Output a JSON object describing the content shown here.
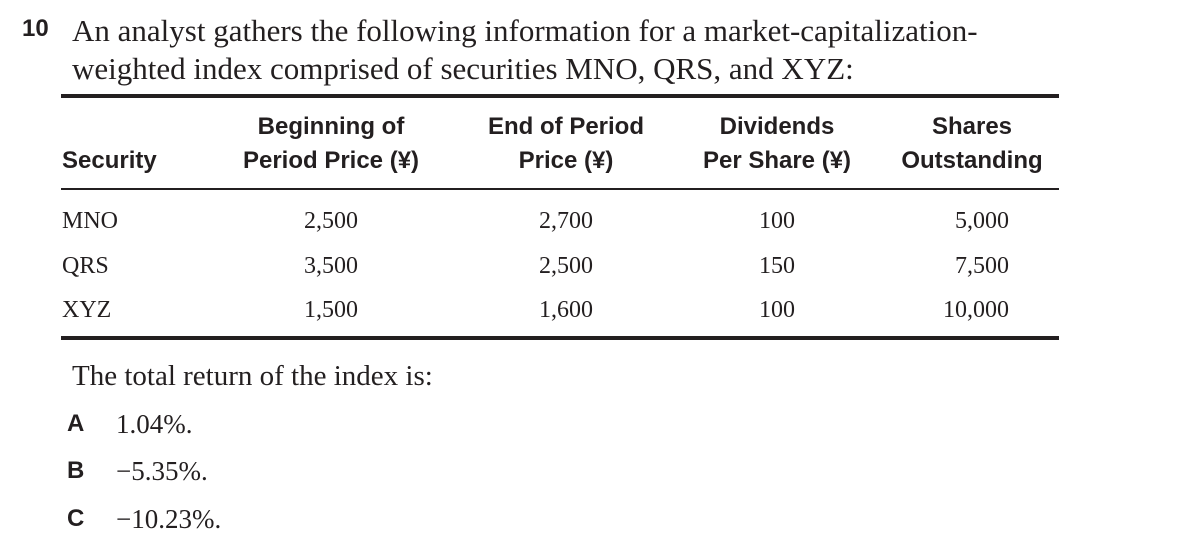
{
  "question": {
    "number": "10",
    "stem_line1": "An analyst gathers the following information for a market-capitalization-",
    "stem_line2": "weighted index comprised of securities MNO, QRS, and XYZ:"
  },
  "table": {
    "headers": [
      {
        "line1": "",
        "line2": "Security"
      },
      {
        "line1": "Beginning of",
        "line2": "Period Price (¥)"
      },
      {
        "line1": "End of Period",
        "line2": "Price (¥)"
      },
      {
        "line1": "Dividends",
        "line2": "Per Share (¥)"
      },
      {
        "line1": "Shares",
        "line2": "Outstanding"
      }
    ],
    "rows": [
      [
        "MNO",
        "2,500",
        "2,700",
        "100",
        "5,000"
      ],
      [
        "QRS",
        "3,500",
        "2,500",
        "150",
        "7,500"
      ],
      [
        "XYZ",
        "1,500",
        "1,600",
        "100",
        "10,000"
      ]
    ]
  },
  "prompt": "The total return of the index is:",
  "choices": [
    {
      "letter": "A",
      "text": "1.04%."
    },
    {
      "letter": "B",
      "text": "−5.35%."
    },
    {
      "letter": "C",
      "text": "−10.23%."
    }
  ]
}
